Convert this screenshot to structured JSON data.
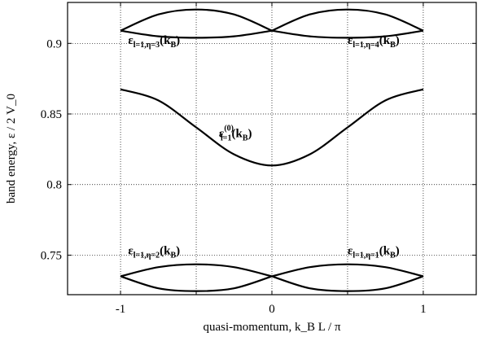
{
  "chart_data": {
    "type": "line",
    "xlabel": "quasi-momentum, k_B L / π",
    "ylabel": "band energy, ε / 2 V_0",
    "xlim": [
      -1.35,
      1.35
    ],
    "ylim": [
      0.722,
      0.929
    ],
    "xticks": [
      -1,
      -0.5,
      0,
      0.5,
      1
    ],
    "xtick_labels": [
      "-1",
      "",
      "0",
      "",
      "1"
    ],
    "yticks": [
      0.75,
      0.8,
      0.85,
      0.9
    ],
    "ytick_labels": [
      "0.75",
      "0.8",
      "0.85",
      "0.9"
    ],
    "grid": true,
    "series": [
      {
        "id": "upper-a",
        "x": [
          -1,
          -0.75,
          -0.5,
          -0.25,
          0
        ],
        "y": [
          0.909,
          0.9205,
          0.924,
          0.9205,
          0.909
        ]
      },
      {
        "id": "upper-b",
        "x": [
          -1,
          -0.75,
          -0.5,
          -0.25,
          0
        ],
        "y": [
          0.909,
          0.905,
          0.904,
          0.905,
          0.909
        ]
      },
      {
        "id": "upper-c",
        "x": [
          0,
          0.25,
          0.5,
          0.75,
          1
        ],
        "y": [
          0.909,
          0.9205,
          0.924,
          0.9205,
          0.909
        ]
      },
      {
        "id": "upper-d",
        "x": [
          0,
          0.25,
          0.5,
          0.75,
          1
        ],
        "y": [
          0.909,
          0.905,
          0.904,
          0.905,
          0.909
        ]
      },
      {
        "id": "middle",
        "x": [
          -1,
          -0.75,
          -0.5,
          -0.25,
          0,
          0.25,
          0.5,
          0.75,
          1
        ],
        "y": [
          0.8675,
          0.8596,
          0.8405,
          0.8214,
          0.8135,
          0.8214,
          0.8405,
          0.8596,
          0.8675
        ]
      },
      {
        "id": "lower-a",
        "x": [
          -1,
          -0.75,
          -0.5,
          -0.25,
          0
        ],
        "y": [
          0.735,
          0.7415,
          0.7435,
          0.7415,
          0.735
        ]
      },
      {
        "id": "lower-b",
        "x": [
          -1,
          -0.75,
          -0.5,
          -0.25,
          0
        ],
        "y": [
          0.735,
          0.7265,
          0.7245,
          0.7265,
          0.735
        ]
      },
      {
        "id": "lower-c",
        "x": [
          0,
          0.25,
          0.5,
          0.75,
          1
        ],
        "y": [
          0.735,
          0.7415,
          0.7435,
          0.7415,
          0.735
        ]
      },
      {
        "id": "lower-d",
        "x": [
          0,
          0.25,
          0.5,
          0.75,
          1
        ],
        "y": [
          0.735,
          0.7265,
          0.7245,
          0.7265,
          0.735
        ]
      }
    ],
    "annotations": [
      {
        "id": "eps-l1-eta3",
        "base": "ε",
        "sub": "l=1,η=3",
        "sup": "",
        "arg": "(k",
        "argsub": "B",
        "close": ")",
        "x": -0.95,
        "y": 0.8995
      },
      {
        "id": "eps-l1-eta4",
        "base": "ε",
        "sub": "l=1,η=4",
        "sup": "",
        "arg": "(k",
        "argsub": "B",
        "close": ")",
        "x": 0.5,
        "y": 0.8995
      },
      {
        "id": "eps-l1-0",
        "base": "ε",
        "sub": "l=1",
        "sup": "(0)",
        "arg": "(k",
        "argsub": "B",
        "close": ")",
        "x": -0.35,
        "y": 0.8335
      },
      {
        "id": "eps-l1-eta2",
        "base": "ε",
        "sub": "l=1,η=2",
        "sup": "",
        "arg": "(k",
        "argsub": "B",
        "close": ")",
        "x": -0.95,
        "y": 0.7505
      },
      {
        "id": "eps-l1-eta1",
        "base": "ε",
        "sub": "l=1,η=1",
        "sup": "",
        "arg": "(k",
        "argsub": "B",
        "close": ")",
        "x": 0.5,
        "y": 0.7505
      }
    ]
  }
}
